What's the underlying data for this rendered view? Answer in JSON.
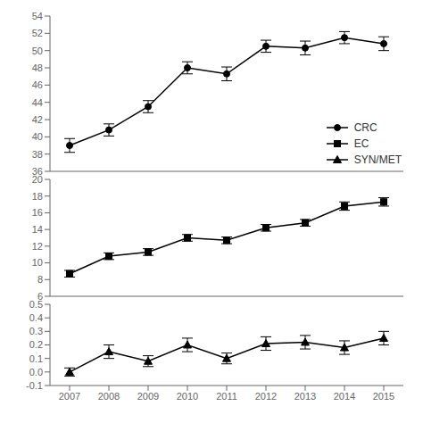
{
  "chart_data": [
    {
      "type": "line",
      "x": [
        2007,
        2008,
        2009,
        2010,
        2011,
        2012,
        2013,
        2014,
        2015
      ],
      "xlim": [
        2006.5,
        2015.5
      ],
      "ylim": [
        36,
        54
      ],
      "yticks": [
        36,
        38,
        40,
        42,
        44,
        46,
        48,
        50,
        52,
        54
      ],
      "tick_labels": "y",
      "legend": "lower right",
      "series": [
        {
          "name": "CRC",
          "color": "#000000",
          "marker": "circle",
          "values": [
            39.0,
            40.8,
            43.5,
            48.0,
            47.3,
            50.5,
            50.3,
            51.5,
            50.8
          ],
          "yerr": [
            0.8,
            0.7,
            0.7,
            0.7,
            0.8,
            0.7,
            0.8,
            0.7,
            0.8
          ]
        }
      ]
    },
    {
      "type": "line",
      "x": [
        2007,
        2008,
        2009,
        2010,
        2011,
        2012,
        2013,
        2014,
        2015
      ],
      "xlim": [
        2006.5,
        2015.5
      ],
      "ylim": [
        6,
        20
      ],
      "yticks": [
        6,
        8,
        10,
        12,
        14,
        16,
        18,
        20
      ],
      "tick_labels": "y",
      "series": [
        {
          "name": "EC",
          "color": "#000000",
          "marker": "square",
          "values": [
            8.7,
            10.8,
            11.3,
            13.0,
            12.7,
            14.2,
            14.8,
            16.8,
            17.3
          ],
          "yerr": [
            0.4,
            0.4,
            0.4,
            0.4,
            0.4,
            0.4,
            0.4,
            0.5,
            0.5
          ]
        }
      ]
    },
    {
      "type": "line",
      "x": [
        2007,
        2008,
        2009,
        2010,
        2011,
        2012,
        2013,
        2014,
        2015
      ],
      "xlim": [
        2006.5,
        2015.5
      ],
      "ylim": [
        -0.1,
        0.5
      ],
      "yticks": [
        -0.1,
        {
          "value": 0,
          "label": "0.0"
        },
        0.1,
        0.2,
        0.3,
        0.4,
        0.5
      ],
      "xticks": [
        2007,
        2008,
        2009,
        2010,
        2011,
        2012,
        2013,
        2014,
        2015
      ],
      "series": [
        {
          "name": "SYN/MET",
          "color": "#000000",
          "marker": "triangle",
          "values": [
            0.0,
            0.15,
            0.08,
            0.2,
            0.1,
            0.21,
            0.22,
            0.18,
            0.25
          ],
          "yerr": [
            0.03,
            0.05,
            0.04,
            0.05,
            0.04,
            0.05,
            0.05,
            0.05,
            0.05
          ]
        }
      ]
    }
  ]
}
